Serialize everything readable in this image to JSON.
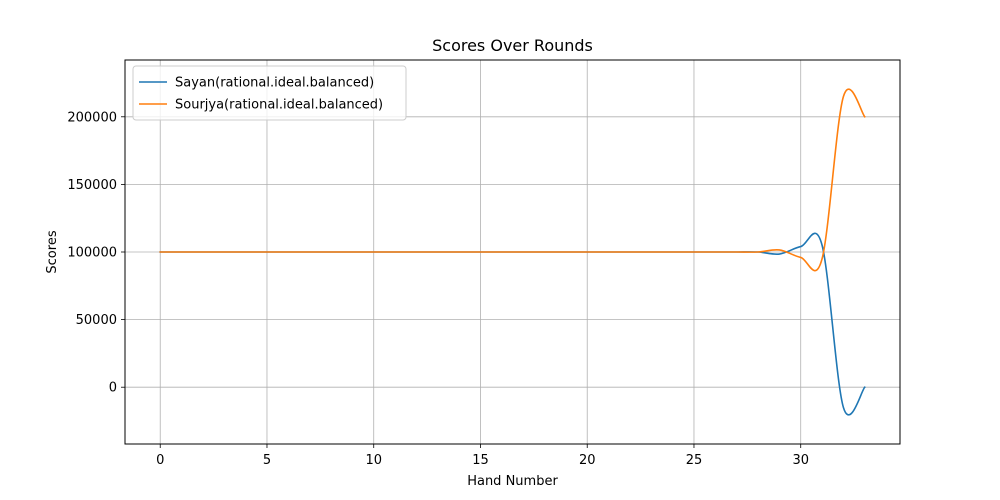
{
  "chart_data": {
    "type": "line",
    "title": "Scores Over Rounds",
    "xlabel": "Hand Number",
    "ylabel": "Scores",
    "xlim": [
      -1.65,
      34.65
    ],
    "ylim": [
      -42000,
      242000
    ],
    "xticks": [
      0,
      5,
      10,
      15,
      20,
      25,
      30
    ],
    "yticks": [
      0,
      50000,
      100000,
      150000,
      200000
    ],
    "grid": true,
    "legend_position": "top-left",
    "series": [
      {
        "name": "Sayan(rational.ideal.balanced)",
        "color": "#1f77b4",
        "x": [
          0,
          1,
          2,
          3,
          4,
          5,
          6,
          7,
          8,
          9,
          10,
          11,
          12,
          13,
          14,
          15,
          16,
          17,
          18,
          19,
          20,
          21,
          22,
          23,
          24,
          25,
          26,
          27,
          28,
          29,
          30,
          31,
          32,
          33
        ],
        "y": [
          100000,
          100000,
          100000,
          100000,
          100000,
          100000,
          100000,
          100000,
          100000,
          100000,
          100000,
          100000,
          100000,
          100000,
          100000,
          100000,
          100000,
          100000,
          100000,
          100000,
          100000,
          100000,
          100000,
          100000,
          100000,
          100000,
          100000,
          100000,
          100000,
          98500,
          104000,
          105000,
          -15000,
          0
        ]
      },
      {
        "name": "Sourjya(rational.ideal.balanced)",
        "color": "#ff7f0e",
        "x": [
          0,
          1,
          2,
          3,
          4,
          5,
          6,
          7,
          8,
          9,
          10,
          11,
          12,
          13,
          14,
          15,
          16,
          17,
          18,
          19,
          20,
          21,
          22,
          23,
          24,
          25,
          26,
          27,
          28,
          29,
          30,
          31,
          32,
          33
        ],
        "y": [
          100000,
          100000,
          100000,
          100000,
          100000,
          100000,
          100000,
          100000,
          100000,
          100000,
          100000,
          100000,
          100000,
          100000,
          100000,
          100000,
          100000,
          100000,
          100000,
          100000,
          100000,
          100000,
          100000,
          100000,
          100000,
          100000,
          100000,
          100000,
          100000,
          101500,
          96000,
          95000,
          215000,
          200000
        ]
      }
    ]
  }
}
